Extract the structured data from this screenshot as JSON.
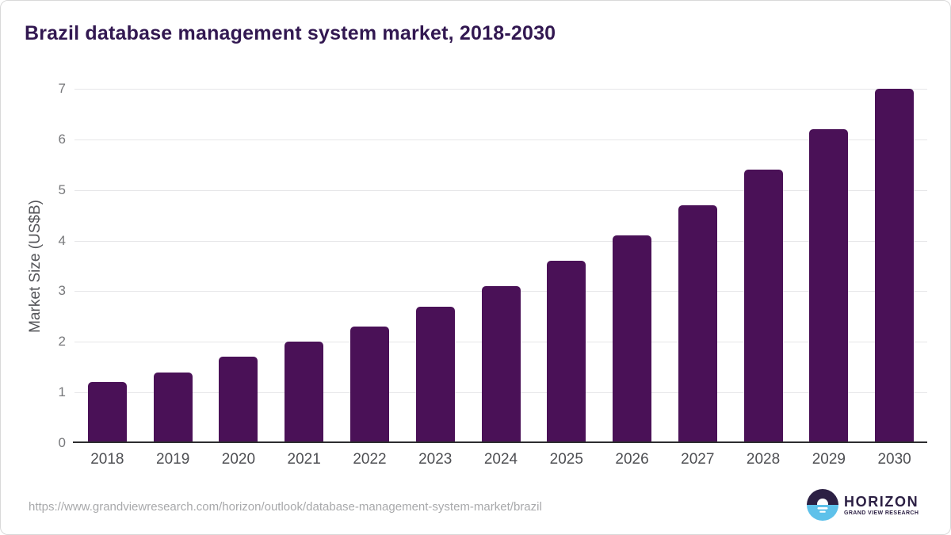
{
  "card": {
    "title": "Brazil database management system market, 2018-2030",
    "source_url": "https://www.grandviewresearch.com/horizon/outlook/database-management-system-market/brazil",
    "logo": {
      "name": "HORIZON",
      "subtitle": "GRAND VIEW RESEARCH"
    }
  },
  "chart_data": {
    "type": "bar",
    "title": "Brazil database management system market, 2018-2030",
    "categories": [
      "2018",
      "2019",
      "2020",
      "2021",
      "2022",
      "2023",
      "2024",
      "2025",
      "2026",
      "2027",
      "2028",
      "2029",
      "2030"
    ],
    "values": [
      1.2,
      1.4,
      1.7,
      2.0,
      2.3,
      2.7,
      3.1,
      3.6,
      4.1,
      4.7,
      5.4,
      6.2,
      7.0
    ],
    "xlabel": "",
    "ylabel": "Market Size (US$B)",
    "ylim": [
      0,
      7
    ],
    "yticks": [
      0,
      1,
      2,
      3,
      4,
      5,
      6,
      7
    ],
    "grid": true,
    "legend": false
  },
  "colors": {
    "bar": "#4a1157",
    "title": "#321851",
    "logo_purple": "#2c2044",
    "logo_blue": "#5ec1ea",
    "gridline": "#e6e6e8",
    "axis_line": "#2d2d2f"
  }
}
